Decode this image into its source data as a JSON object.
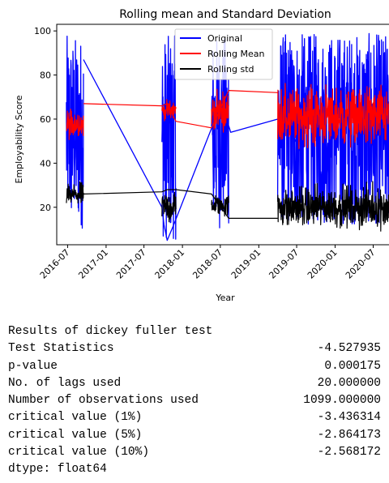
{
  "chart_data": {
    "type": "line",
    "title": "Rolling mean and Standard Deviation",
    "xlabel": "Year",
    "ylabel": "Employability Score",
    "xlim": [
      "2016-05-10",
      "2020-09-30"
    ],
    "ylim": [
      3,
      103
    ],
    "yticks": [
      20,
      40,
      60,
      80,
      100
    ],
    "xticks": [
      "2016-07",
      "2017-01",
      "2017-07",
      "2018-01",
      "2018-07",
      "2019-01",
      "2019-07",
      "2020-01",
      "2020-07"
    ],
    "grid": false,
    "legend": "top-center",
    "series": [
      {
        "name": "Original",
        "color": "#0000ff",
        "segments": [
          {
            "dense": true,
            "x": [
              "2016-06-25",
              "2016-09-15"
            ],
            "range": [
              10,
              98
            ]
          },
          {
            "dense": false,
            "x": [
              "2016-09-15",
              "2017-09-25",
              "2017-10-05",
              "2017-10-20",
              "2017-11-20",
              "2018-05-25",
              "2018-05-30"
            ],
            "y": [
              87,
              20,
              12,
              5,
              12,
              57,
              20
            ]
          },
          {
            "dense": true,
            "x": [
              "2017-09-25",
              "2017-12-01"
            ],
            "range": [
              5,
              98
            ]
          },
          {
            "dense": true,
            "x": [
              "2018-05-20",
              "2018-08-10"
            ],
            "range": [
              10,
              98
            ]
          },
          {
            "dense": false,
            "x": [
              "2018-08-10",
              "2018-08-20",
              "2019-04-01",
              "2019-05-05",
              "2019-05-20",
              "2019-08-01"
            ],
            "y": [
              57,
              54,
              60,
              59,
              57,
              43
            ]
          },
          {
            "dense": true,
            "x": [
              "2019-04-01",
              "2020-09-15"
            ],
            "range": [
              12,
              99
            ]
          }
        ]
      },
      {
        "name": "Rolling Mean",
        "color": "#ff0000",
        "segments": [
          {
            "dense": true,
            "x": [
              "2016-06-25",
              "2016-09-15"
            ],
            "range": [
              48,
              68
            ]
          },
          {
            "dense": false,
            "x": [
              "2016-09-15",
              "2017-09-25",
              "2017-10-20",
              "2017-12-01",
              "2018-05-20",
              "2018-08-10",
              "2019-04-01"
            ],
            "y": [
              67,
              66,
              67,
              59,
              56,
              73,
              72
            ]
          },
          {
            "dense": true,
            "x": [
              "2017-09-25",
              "2017-12-01"
            ],
            "range": [
              58,
              70
            ]
          },
          {
            "dense": true,
            "x": [
              "2018-05-20",
              "2018-08-10"
            ],
            "range": [
              52,
              75
            ]
          },
          {
            "dense": true,
            "x": [
              "2019-04-01",
              "2020-09-15"
            ],
            "range": [
              42,
              80
            ]
          }
        ]
      },
      {
        "name": "Rolling std",
        "color": "#000000",
        "segments": [
          {
            "dense": true,
            "x": [
              "2016-06-25",
              "2016-09-15"
            ],
            "range": [
              18,
              33
            ]
          },
          {
            "dense": false,
            "x": [
              "2016-09-15",
              "2017-09-25",
              "2017-10-20",
              "2017-12-01",
              "2018-05-20",
              "2018-08-10",
              "2019-04-01"
            ],
            "y": [
              26,
              27,
              28,
              28,
              26,
              15,
              15
            ]
          },
          {
            "dense": true,
            "x": [
              "2017-09-25",
              "2017-12-01"
            ],
            "range": [
              10,
              30
            ]
          },
          {
            "dense": true,
            "x": [
              "2018-05-20",
              "2018-08-10"
            ],
            "range": [
              14,
              28
            ]
          },
          {
            "dense": true,
            "x": [
              "2019-04-01",
              "2020-09-15"
            ],
            "range": [
              7,
              33
            ]
          }
        ]
      }
    ]
  },
  "output": {
    "header": "Results of dickey fuller test",
    "rows": [
      {
        "label": "Test Statistics",
        "value": "-4.527935"
      },
      {
        "label": "p-value",
        "value": "0.000175"
      },
      {
        "label": "No. of lags used",
        "value": "20.000000"
      },
      {
        "label": "Number of observations used",
        "value": "1099.000000"
      },
      {
        "label": "critical value (1%)",
        "value": "-3.436314"
      },
      {
        "label": "critical value (5%)",
        "value": "-2.864173"
      },
      {
        "label": "critical value (10%)",
        "value": "-2.568172"
      }
    ],
    "footer": "dtype: float64"
  }
}
